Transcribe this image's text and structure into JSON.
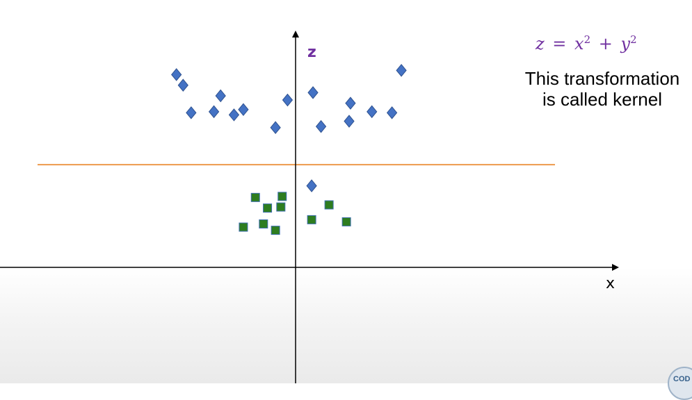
{
  "axes": {
    "x_label": "x",
    "z_label": "z"
  },
  "formula": {
    "lhs": "z",
    "equals": "=",
    "term1_base": "x",
    "term1_exp": "2",
    "plus": "+",
    "term2_base": "y",
    "term2_exp": "2"
  },
  "caption": {
    "line1": "This transformation",
    "line2": "is called kernel"
  },
  "logo": {
    "text": "COD"
  },
  "colors": {
    "diamond_fill": "#4472c4",
    "square_fill": "#2e7d1f",
    "separator": "#ed9a4c",
    "label_purple": "#7030a0"
  },
  "chart_data": {
    "type": "scatter",
    "x_range": [
      -10,
      10
    ],
    "z_range": [
      0,
      10
    ],
    "series": [
      {
        "marker": "diamond",
        "points": [
          [
            -4.45,
            9.1
          ],
          [
            -4.2,
            8.6
          ],
          [
            -3.9,
            7.3
          ],
          [
            -2.8,
            8.1
          ],
          [
            -3.05,
            7.35
          ],
          [
            -2.3,
            7.2
          ],
          [
            -1.95,
            7.45
          ],
          [
            -0.75,
            6.6
          ],
          [
            -0.3,
            7.9
          ],
          [
            0.65,
            8.25
          ],
          [
            0.95,
            6.65
          ],
          [
            2.05,
            7.75
          ],
          [
            2.0,
            6.9
          ],
          [
            2.85,
            7.35
          ],
          [
            3.6,
            7.3
          ],
          [
            3.95,
            9.3
          ],
          [
            0.6,
            3.85
          ]
        ]
      },
      {
        "marker": "square",
        "points": [
          [
            -1.5,
            3.3
          ],
          [
            -1.05,
            2.8
          ],
          [
            -0.5,
            3.35
          ],
          [
            -0.55,
            2.85
          ],
          [
            -1.95,
            1.9
          ],
          [
            -1.2,
            2.05
          ],
          [
            -0.75,
            1.75
          ],
          [
            0.6,
            2.25
          ],
          [
            1.25,
            2.95
          ],
          [
            1.9,
            2.15
          ]
        ]
      }
    ],
    "separator_z": 4.85
  }
}
